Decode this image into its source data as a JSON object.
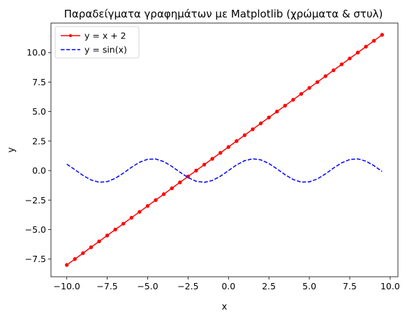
{
  "chart_data": {
    "type": "line",
    "title": "Παραδείγματα γραφημάτων με Matplotlib (χρώματα & στυλ)",
    "xlabel": "x",
    "ylabel": "y",
    "xlim": [
      -10.98,
      10.48
    ],
    "ylim": [
      -9.0,
      12.5
    ],
    "xticks": [
      "−10.0",
      "−7.5",
      "−5.0",
      "−2.5",
      "0.0",
      "2.5",
      "5.0",
      "7.5",
      "10.0"
    ],
    "xtick_values": [
      -10,
      -7.5,
      -5,
      -2.5,
      0,
      2.5,
      5,
      7.5,
      10
    ],
    "yticks": [
      "−7.5",
      "−5.0",
      "−2.5",
      "0.0",
      "2.5",
      "5.0",
      "7.5",
      "10.0"
    ],
    "ytick_values": [
      -7.5,
      -5,
      -2.5,
      0,
      2.5,
      5,
      7.5,
      10
    ],
    "grid": false,
    "legend_position": "top-left",
    "series": [
      {
        "name": "y = x + 2",
        "color": "#ff0000",
        "style": "solid",
        "marker": "circle",
        "x": [
          -10.0,
          -9.5,
          -9.0,
          -8.5,
          -8.0,
          -7.5,
          -7.0,
          -6.5,
          -6.0,
          -5.5,
          -5.0,
          -4.5,
          -4.0,
          -3.5,
          -3.0,
          -2.5,
          -2.0,
          -1.5,
          -1.0,
          -0.5,
          0.0,
          0.5,
          1.0,
          1.5,
          2.0,
          2.5,
          3.0,
          3.5,
          4.0,
          4.5,
          5.0,
          5.5,
          6.0,
          6.5,
          7.0,
          7.5,
          8.0,
          8.5,
          9.0,
          9.5
        ],
        "y": [
          -8.0,
          -7.5,
          -7.0,
          -6.5,
          -6.0,
          -5.5,
          -5.0,
          -4.5,
          -4.0,
          -3.5,
          -3.0,
          -2.5,
          -2.0,
          -1.5,
          -1.0,
          -0.5,
          0.0,
          0.5,
          1.0,
          1.5,
          2.0,
          2.5,
          3.0,
          3.5,
          4.0,
          4.5,
          5.0,
          5.5,
          6.0,
          6.5,
          7.0,
          7.5,
          8.0,
          8.5,
          9.0,
          9.5,
          10.0,
          10.5,
          11.0,
          11.5
        ]
      },
      {
        "name": "y = sin(x)",
        "color": "#0000ff",
        "style": "dashed",
        "marker": "none",
        "x": [
          -10.0,
          -9.5,
          -9.0,
          -8.5,
          -8.0,
          -7.5,
          -7.0,
          -6.5,
          -6.0,
          -5.5,
          -5.0,
          -4.5,
          -4.0,
          -3.5,
          -3.0,
          -2.5,
          -2.0,
          -1.5,
          -1.0,
          -0.5,
          0.0,
          0.5,
          1.0,
          1.5,
          2.0,
          2.5,
          3.0,
          3.5,
          4.0,
          4.5,
          5.0,
          5.5,
          6.0,
          6.5,
          7.0,
          7.5,
          8.0,
          8.5,
          9.0,
          9.5
        ],
        "y": [
          0.544,
          0.075,
          -0.412,
          -0.798,
          -0.989,
          -0.938,
          -0.657,
          -0.215,
          0.279,
          0.706,
          0.959,
          0.978,
          0.757,
          0.351,
          -0.141,
          -0.598,
          -0.909,
          -0.997,
          -0.841,
          -0.479,
          0.0,
          0.479,
          0.841,
          0.997,
          0.909,
          0.598,
          0.141,
          -0.351,
          -0.757,
          -0.978,
          -0.959,
          -0.706,
          -0.279,
          0.215,
          0.657,
          0.938,
          0.989,
          0.798,
          0.412,
          -0.075
        ]
      }
    ]
  }
}
